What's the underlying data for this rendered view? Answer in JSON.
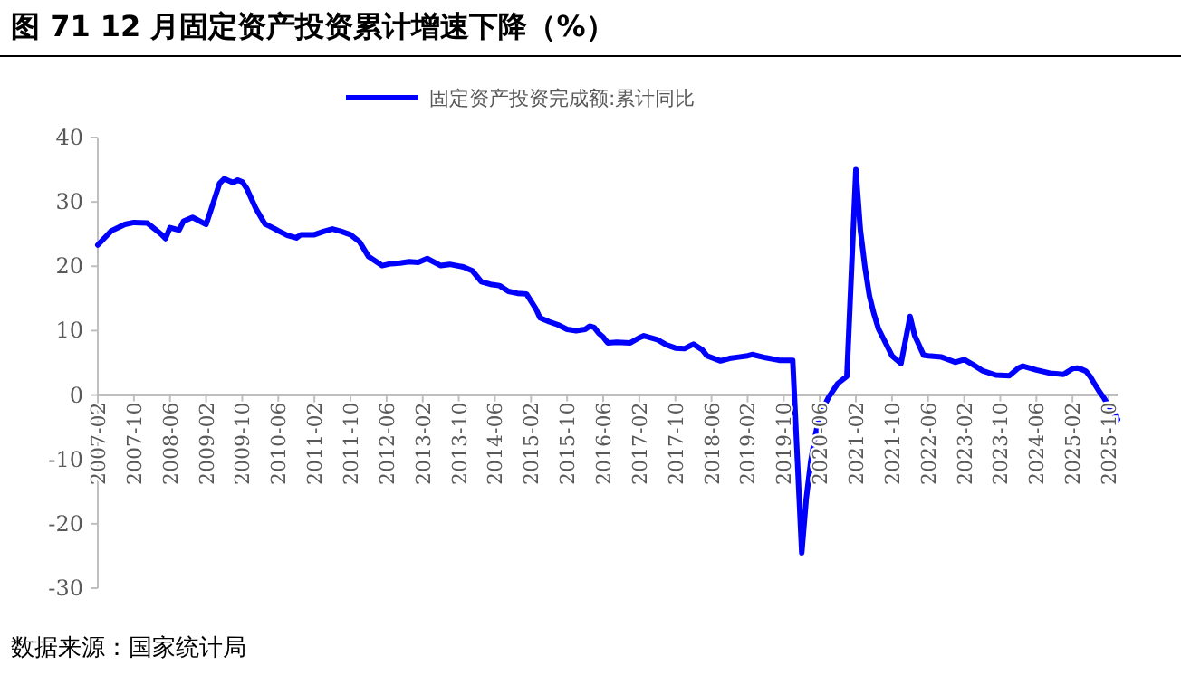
{
  "chart_data": {
    "type": "line",
    "title": "图 71 12 月固定资产投资累计增速下降（%）",
    "annotations": [
      "数据来源：国家统计局"
    ],
    "x": [
      "2007-02",
      "2007-05",
      "2007-08",
      "2007-10",
      "2008-01",
      "2008-04",
      "2008-05",
      "2008-06",
      "2008-08",
      "2008-09",
      "2008-11",
      "2009-02",
      "2009-03",
      "2009-05",
      "2009-06",
      "2009-08",
      "2009-09",
      "2009-10",
      "2009-11",
      "2010-01",
      "2010-03",
      "2010-05",
      "2010-06",
      "2010-08",
      "2010-10",
      "2010-11",
      "2011-02",
      "2011-04",
      "2011-06",
      "2011-08",
      "2011-10",
      "2011-12",
      "2012-02",
      "2012-05",
      "2012-07",
      "2012-09",
      "2012-11",
      "2013-01",
      "2013-03",
      "2013-06",
      "2013-08",
      "2013-11",
      "2014-01",
      "2014-03",
      "2014-05",
      "2014-07",
      "2014-09",
      "2014-11",
      "2015-01",
      "2015-03",
      "2015-04",
      "2015-06",
      "2015-08",
      "2015-10",
      "2015-12",
      "2016-02",
      "2016-03",
      "2016-04",
      "2016-05",
      "2016-06",
      "2016-07",
      "2016-09",
      "2016-12",
      "2017-02",
      "2017-03",
      "2017-06",
      "2017-08",
      "2017-10",
      "2017-12",
      "2018-02",
      "2018-04",
      "2018-05",
      "2018-08",
      "2018-10",
      "2018-12",
      "2019-02",
      "2019-03",
      "2019-06",
      "2019-09",
      "2019-12",
      "2020-02",
      "2020-03",
      "2020-04",
      "2020-05",
      "2020-06",
      "2020-08",
      "2020-10",
      "2020-12",
      "2021-02",
      "2021-03",
      "2021-04",
      "2021-05",
      "2021-06",
      "2021-07",
      "2021-08",
      "2021-10",
      "2021-12",
      "2022-02",
      "2022-03",
      "2022-05",
      "2022-06",
      "2022-09",
      "2022-12",
      "2023-02",
      "2023-04",
      "2023-06",
      "2023-09",
      "2023-12",
      "2024-02",
      "2024-03",
      "2024-06",
      "2024-09",
      "2024-12",
      "2025-02",
      "2025-03",
      "2025-04",
      "2025-05",
      "2025-06",
      "2025-07",
      "2025-08",
      "2025-09",
      "2025-10",
      "2025-11",
      "2025-12"
    ],
    "series": [
      {
        "name": "固定资产投资完成额:累计同比",
        "color": "#0000ff",
        "values": [
          23.3,
          25.5,
          26.5,
          26.8,
          26.7,
          25,
          24.3,
          26,
          25.6,
          27,
          27.6,
          26.5,
          28.6,
          32.9,
          33.6,
          33,
          33.4,
          33.1,
          32.1,
          29,
          26.6,
          25.9,
          25.5,
          24.8,
          24.4,
          24.9,
          24.9,
          25.4,
          25.8,
          25.4,
          24.9,
          23.8,
          21.5,
          20.1,
          20.4,
          20.5,
          20.7,
          20.6,
          21.2,
          20.1,
          20.3,
          19.9,
          19.3,
          17.6,
          17.2,
          17,
          16.1,
          15.8,
          15.7,
          13.5,
          12,
          11.4,
          10.9,
          10.2,
          10,
          10.2,
          10.7,
          10.5,
          9.6,
          9,
          8.1,
          8.2,
          8.1,
          8.9,
          9.2,
          8.6,
          7.8,
          7.3,
          7.2,
          7.9,
          7,
          6.1,
          5.3,
          5.7,
          5.9,
          6.1,
          6.3,
          5.8,
          5.4,
          5.4,
          -24.5,
          -16.1,
          -10.3,
          -6.3,
          -3.1,
          -0.3,
          1.8,
          2.9,
          35,
          25.6,
          19.9,
          15.4,
          12.6,
          10.3,
          8.9,
          6.1,
          4.9,
          12.2,
          9.3,
          6.2,
          6.1,
          5.9,
          5.1,
          5.5,
          4.7,
          3.8,
          3.1,
          3,
          4.2,
          4.5,
          3.9,
          3.4,
          3.2,
          4.1,
          4.2,
          4,
          3.7,
          2.8,
          1.6,
          0.5,
          -0.5,
          -1.7,
          -2.6,
          -3.8
        ]
      }
    ],
    "xlim": [
      "2007-02",
      "2025-12"
    ],
    "xticks": [
      "2007-02",
      "2007-10",
      "2008-06",
      "2009-02",
      "2009-10",
      "2010-06",
      "2011-02",
      "2011-10",
      "2012-06",
      "2013-02",
      "2013-10",
      "2014-06",
      "2015-02",
      "2015-10",
      "2016-06",
      "2017-02",
      "2017-10",
      "2018-06",
      "2019-02",
      "2019-10",
      "2020-06",
      "2021-02",
      "2021-10",
      "2022-06",
      "2023-02",
      "2023-10",
      "2024-06",
      "2025-02",
      "2025-10"
    ],
    "ylim": [
      -30,
      40
    ],
    "yticks": [
      -30,
      -20,
      -10,
      0,
      10,
      20,
      30,
      40
    ],
    "legend": "top",
    "grid": false,
    "line_style": "solid",
    "marker": "none"
  }
}
